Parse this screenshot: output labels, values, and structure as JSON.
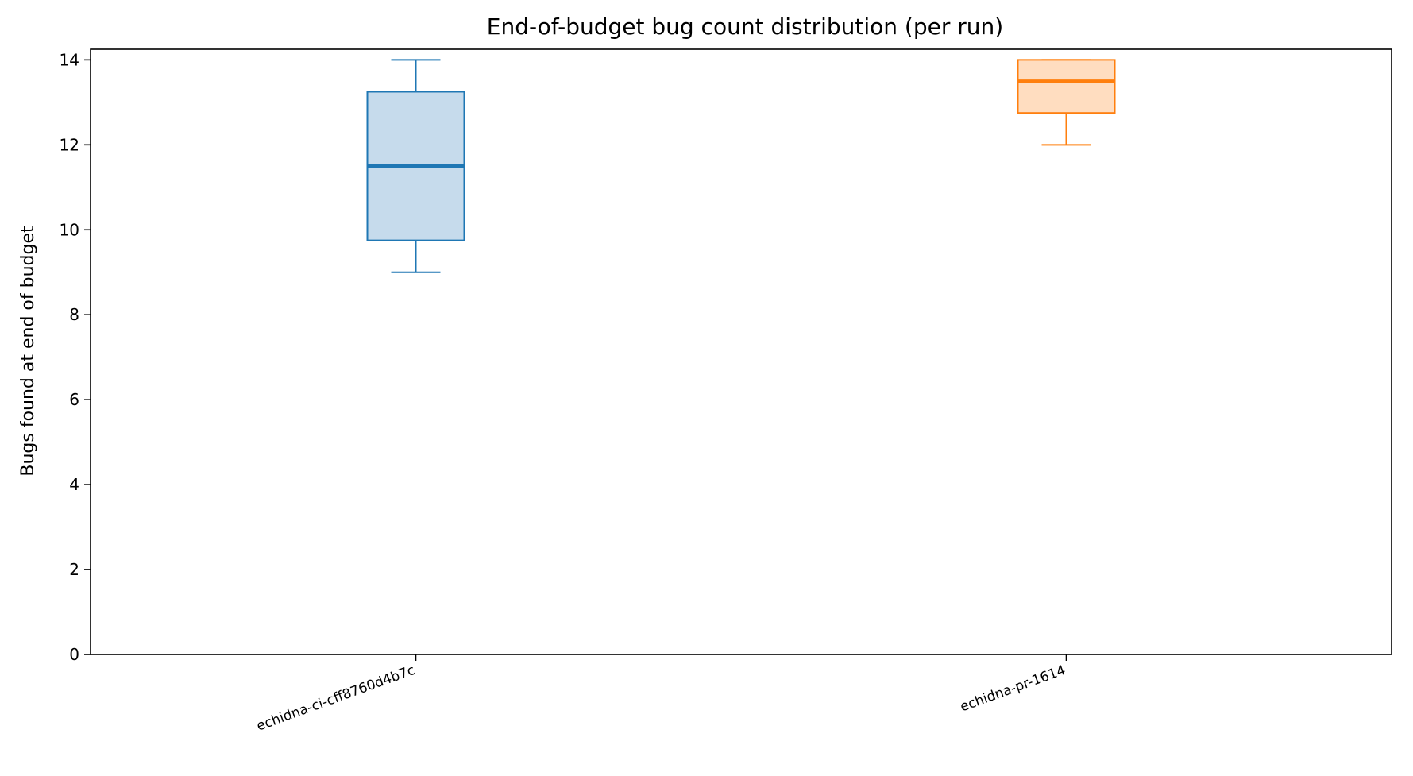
{
  "chart_data": {
    "type": "box",
    "title": "End-of-budget bug count distribution (per run)",
    "xlabel": "",
    "ylabel": "Bugs found at end of budget",
    "ylim": [
      0,
      14.25
    ],
    "yticks": [
      0,
      2,
      4,
      6,
      8,
      10,
      12,
      14
    ],
    "grid": false,
    "categories": [
      "echidna-ci-cff8760d4b7c",
      "echidna-pr-1614"
    ],
    "series": [
      {
        "category": "echidna-ci-cff8760d4b7c",
        "whisker_low": 9,
        "q1": 9.75,
        "median": 11.5,
        "q3": 13.25,
        "whisker_high": 14,
        "color": "#1f77b4",
        "fill": "#c6dbec"
      },
      {
        "category": "echidna-pr-1614",
        "whisker_low": 12,
        "q1": 12.75,
        "median": 13.5,
        "q3": 14,
        "whisker_high": 14,
        "color": "#ff7f0e",
        "fill": "#ffddc0"
      }
    ]
  }
}
